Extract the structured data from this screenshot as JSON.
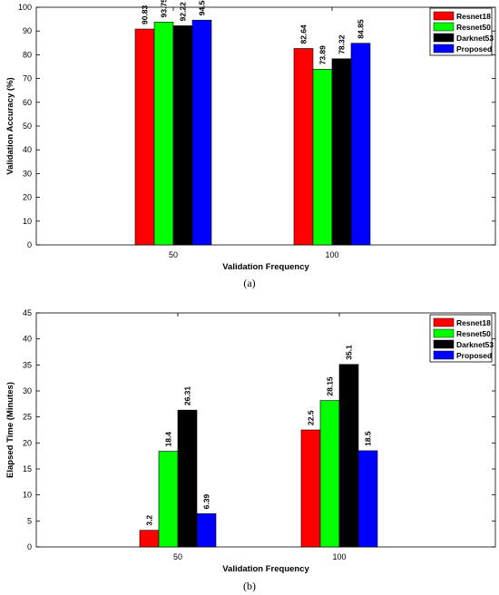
{
  "chart_data": [
    {
      "type": "bar",
      "panel_label": "(a)",
      "categories": [
        "50",
        "100"
      ],
      "series": [
        {
          "name": "Resnet18",
          "color": "#ff0000",
          "values": [
            90.83,
            82.64
          ],
          "labels": [
            "90.83",
            "82.64"
          ]
        },
        {
          "name": "Resnet50",
          "color": "#00ff00",
          "values": [
            93.75,
            73.89
          ],
          "labels": [
            "93.75",
            "73.89"
          ]
        },
        {
          "name": "Darknet53",
          "color": "#000000",
          "values": [
            92.22,
            78.32
          ],
          "labels": [
            "92.22",
            "78.32"
          ]
        },
        {
          "name": "Proposed",
          "color": "#0000ff",
          "values": [
            94.58,
            84.85
          ],
          "labels": [
            "94.58",
            "84.85"
          ]
        }
      ],
      "xlabel": "Validation Frequency",
      "ylabel": "Validation Accuracy (%)",
      "ylim": [
        0,
        100
      ],
      "yticks": [
        "0",
        "10",
        "20",
        "30",
        "40",
        "50",
        "60",
        "70",
        "80",
        "90",
        "100"
      ],
      "legend": "top-right",
      "grid": false
    },
    {
      "type": "bar",
      "panel_label": "(b)",
      "categories": [
        "50",
        "100"
      ],
      "series": [
        {
          "name": "Resnet18",
          "color": "#ff0000",
          "values": [
            3.2,
            22.5
          ],
          "labels": [
            "3.2",
            "22.5"
          ]
        },
        {
          "name": "Resnet50",
          "color": "#00ff00",
          "values": [
            18.4,
            28.15
          ],
          "labels": [
            "18.4",
            "28.15"
          ]
        },
        {
          "name": "Darknet53",
          "color": "#000000",
          "values": [
            26.31,
            35.1
          ],
          "labels": [
            "26.31",
            "35.1"
          ]
        },
        {
          "name": "Proposed",
          "color": "#0000ff",
          "values": [
            6.39,
            18.5
          ],
          "labels": [
            "6.39",
            "18.5"
          ]
        }
      ],
      "xlabel": "Validation Frequency",
      "ylabel": "Elapsed Time (Minutes)",
      "ylim": [
        0,
        45
      ],
      "yticks": [
        "0",
        "5",
        "10",
        "15",
        "20",
        "25",
        "30",
        "35",
        "40",
        "45"
      ],
      "legend": "top-right",
      "grid": false
    }
  ]
}
